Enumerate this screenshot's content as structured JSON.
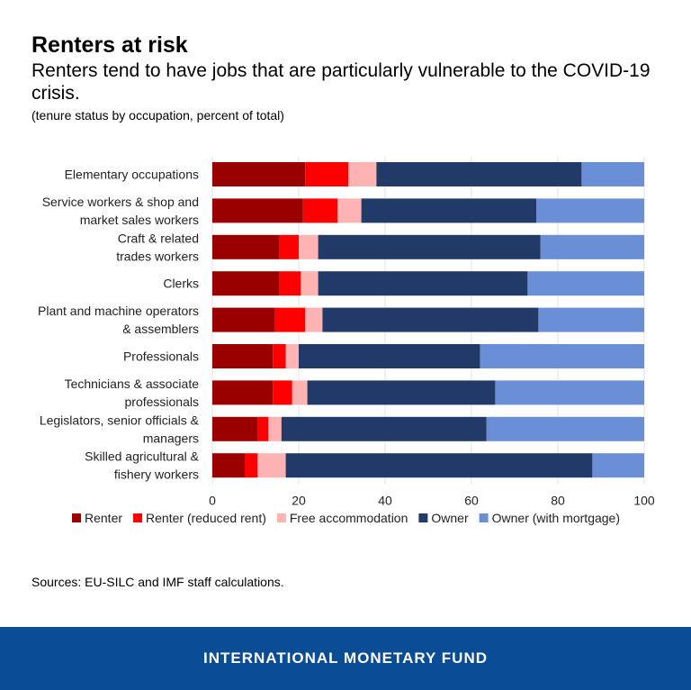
{
  "title": "Renters at risk",
  "subtitle": "Renters tend to have jobs that are particularly vulnerable to the COVID-19 crisis.",
  "note": "(tenure status by occupation, percent of total)",
  "source": "Sources: EU-SILC and IMF staff calculations.",
  "footer": "INTERNATIONAL MONETARY FUND",
  "chart_data": {
    "type": "bar",
    "orientation": "horizontal",
    "stacked": true,
    "categories": [
      [
        "Elementary occupations"
      ],
      [
        "Service workers & shop and",
        "market sales workers"
      ],
      [
        "Craft & related",
        "trades workers"
      ],
      [
        "Clerks"
      ],
      [
        "Plant and machine operators",
        "& assemblers"
      ],
      [
        "Professionals"
      ],
      [
        "Technicians & associate",
        "professionals"
      ],
      [
        "Legislators, senior officials &",
        "managers"
      ],
      [
        "Skilled agricultural &",
        "fishery workers"
      ]
    ],
    "series": [
      {
        "name": "Renter",
        "color": "#9b0000",
        "values": [
          21.5,
          21,
          15.5,
          15.5,
          14.5,
          14,
          14,
          10.5,
          7.5
        ]
      },
      {
        "name": "Renter (reduced rent)",
        "color": "#ff0000",
        "values": [
          10,
          8,
          4.5,
          5,
          7,
          3,
          4.5,
          2.5,
          3
        ]
      },
      {
        "name": "Free accommodation",
        "color": "#ffb3b3",
        "values": [
          6.5,
          5.5,
          4.5,
          4,
          4,
          3,
          3.5,
          3,
          6.5
        ]
      },
      {
        "name": "Owner",
        "color": "#213a67",
        "values": [
          47.5,
          40.5,
          51.5,
          48.5,
          50,
          42,
          43.5,
          47.5,
          71
        ]
      },
      {
        "name": "Owner (with mortgage)",
        "color": "#6a8fd6",
        "values": [
          14.5,
          25,
          24,
          27,
          24.5,
          38,
          34.5,
          36.5,
          12
        ]
      }
    ],
    "xlim": [
      0,
      100
    ],
    "xticks": [
      0,
      20,
      40,
      60,
      80,
      100
    ],
    "xlabel": "",
    "ylabel": "",
    "grid": true,
    "legend": "bottom"
  }
}
